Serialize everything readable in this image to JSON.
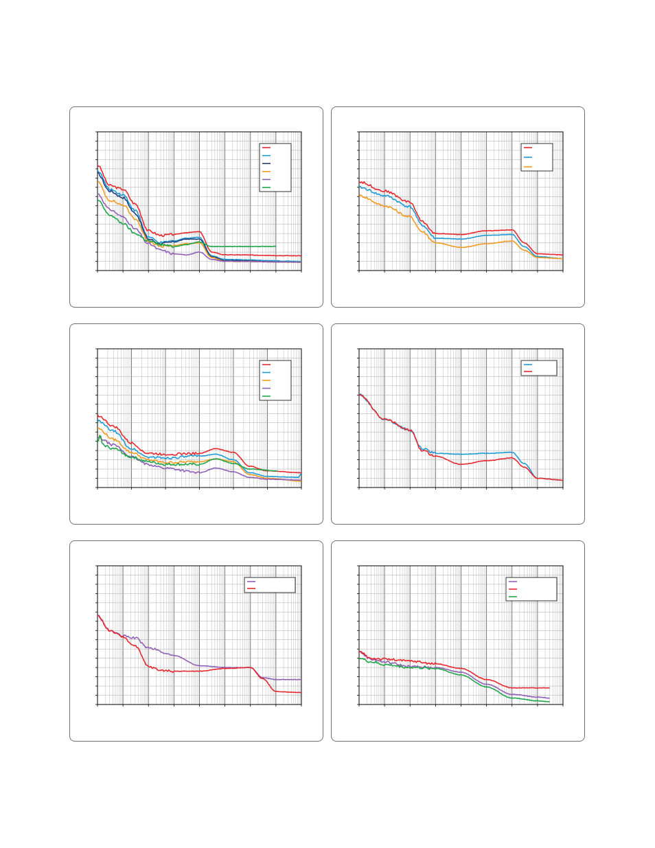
{
  "colors": {
    "red": "#e8262b",
    "cyan": "#1e9ad6",
    "navy": "#1f3f7a",
    "orange": "#f39a1e",
    "purple": "#8f5fb5",
    "green": "#1ea64a",
    "grid": "#a8a8a8",
    "axis": "#000000"
  },
  "chart_data": [
    {
      "type": "line",
      "x_scale": "log",
      "xlim": [
        1,
        100000000.0
      ],
      "ylim": [
        0,
        15
      ],
      "grid": true,
      "legend": "top-right",
      "series": [
        {
          "color": "red",
          "points": [
            [
              1,
              11.4
            ],
            [
              3,
              9.2
            ],
            [
              10,
              8.8
            ],
            [
              30,
              7.2
            ],
            [
              100,
              4.3
            ],
            [
              300,
              3.8
            ],
            [
              1000.0,
              3.9
            ],
            [
              3000.0,
              4.1
            ],
            [
              10000.0,
              4.2
            ],
            [
              30000.0,
              2.0
            ],
            [
              100000.0,
              1.7
            ],
            [
              100000000.0,
              1.6
            ]
          ]
        },
        {
          "color": "cyan",
          "points": [
            [
              1,
              10.8
            ],
            [
              3,
              8.8
            ],
            [
              10,
              8.2
            ],
            [
              30,
              6.5
            ],
            [
              100,
              3.6
            ],
            [
              300,
              3.0
            ],
            [
              1000.0,
              3.2
            ],
            [
              3000.0,
              3.5
            ],
            [
              10000.0,
              3.6
            ],
            [
              30000.0,
              1.6
            ],
            [
              100000.0,
              1.2
            ],
            [
              100000000.0,
              1.0
            ]
          ]
        },
        {
          "color": "navy",
          "points": [
            [
              1,
              10.5
            ],
            [
              3,
              8.6
            ],
            [
              10,
              7.9
            ],
            [
              30,
              6.2
            ],
            [
              100,
              3.4
            ],
            [
              300,
              2.9
            ],
            [
              1000.0,
              3.1
            ],
            [
              3000.0,
              3.4
            ],
            [
              10000.0,
              3.4
            ],
            [
              30000.0,
              1.5
            ],
            [
              100000.0,
              1.1
            ],
            [
              100000000.0,
              0.9
            ]
          ]
        },
        {
          "color": "orange",
          "points": [
            [
              1,
              9.6
            ],
            [
              3,
              7.6
            ],
            [
              10,
              7.1
            ],
            [
              30,
              5.6
            ],
            [
              100,
              3.2
            ],
            [
              300,
              2.6
            ],
            [
              1000.0,
              2.7
            ],
            [
              3000.0,
              2.9
            ],
            [
              10000.0,
              3.0
            ],
            [
              30000.0,
              1.4
            ],
            [
              100000.0,
              1.0
            ],
            [
              100000000.0,
              0.9
            ]
          ]
        },
        {
          "color": "purple",
          "points": [
            [
              1,
              8.3
            ],
            [
              3,
              6.6
            ],
            [
              10,
              5.8
            ],
            [
              30,
              4.5
            ],
            [
              100,
              2.9
            ],
            [
              300,
              2.2
            ],
            [
              1000.0,
              1.8
            ],
            [
              3000.0,
              1.7
            ],
            [
              10000.0,
              2.0
            ],
            [
              30000.0,
              1.2
            ],
            [
              100000.0,
              1.0
            ],
            [
              100000000.0,
              0.9
            ]
          ]
        },
        {
          "color": "green",
          "points": [
            [
              1,
              7.6
            ],
            [
              3,
              6.0
            ],
            [
              10,
              5.1
            ],
            [
              30,
              4.0
            ],
            [
              100,
              3.2
            ],
            [
              300,
              2.8
            ],
            [
              1000.0,
              2.6
            ],
            [
              3000.0,
              2.8
            ],
            [
              10000.0,
              3.1
            ],
            [
              30000.0,
              2.6
            ],
            [
              1000000.0,
              2.6
            ],
            [
              10000000.0,
              2.6
            ]
          ]
        }
      ]
    },
    {
      "type": "line",
      "x_scale": "log",
      "xlim": [
        1,
        100000000.0
      ],
      "ylim": [
        0,
        15
      ],
      "grid": true,
      "legend": "top-right",
      "series": [
        {
          "color": "red",
          "points": [
            [
              1,
              9.6
            ],
            [
              10,
              8.6
            ],
            [
              100,
              7.4
            ],
            [
              300,
              5.3
            ],
            [
              1000.0,
              4.0
            ],
            [
              10000.0,
              3.9
            ],
            [
              100000.0,
              4.3
            ],
            [
              1000000.0,
              4.4
            ],
            [
              3000000.0,
              3.0
            ],
            [
              10000000.0,
              1.8
            ],
            [
              100000000.0,
              1.7
            ]
          ]
        },
        {
          "color": "cyan",
          "points": [
            [
              1,
              9.0
            ],
            [
              10,
              8.1
            ],
            [
              100,
              6.9
            ],
            [
              300,
              4.9
            ],
            [
              1000.0,
              3.5
            ],
            [
              10000.0,
              3.4
            ],
            [
              100000.0,
              3.8
            ],
            [
              1000000.0,
              3.9
            ],
            [
              3000000.0,
              2.6
            ],
            [
              10000000.0,
              1.5
            ],
            [
              100000000.0,
              1.3
            ]
          ]
        },
        {
          "color": "orange",
          "points": [
            [
              1,
              8.1
            ],
            [
              10,
              7.0
            ],
            [
              100,
              5.8
            ],
            [
              300,
              4.2
            ],
            [
              1000.0,
              3.0
            ],
            [
              10000.0,
              2.5
            ],
            [
              100000.0,
              2.9
            ],
            [
              1000000.0,
              3.2
            ],
            [
              3000000.0,
              2.2
            ],
            [
              10000000.0,
              1.4
            ],
            [
              100000000.0,
              1.3
            ]
          ]
        }
      ]
    },
    {
      "type": "line",
      "x_scale": "log",
      "xlim": [
        1,
        1000000.0
      ],
      "ylim": [
        0,
        15
      ],
      "grid": true,
      "legend": "top-right",
      "series": [
        {
          "color": "red",
          "points": [
            [
              1,
              7.8
            ],
            [
              3,
              6.6
            ],
            [
              10,
              4.8
            ],
            [
              30,
              3.7
            ],
            [
              100,
              3.6
            ],
            [
              1000.0,
              3.7
            ],
            [
              3000.0,
              4.2
            ],
            [
              10000.0,
              3.8
            ],
            [
              30000.0,
              2.3
            ],
            [
              100000.0,
              1.8
            ],
            [
              1000000.0,
              1.6
            ]
          ]
        },
        {
          "color": "cyan",
          "points": [
            [
              1,
              7.2
            ],
            [
              3,
              6.1
            ],
            [
              10,
              4.2
            ],
            [
              30,
              3.3
            ],
            [
              100,
              3.2
            ],
            [
              1000.0,
              3.4
            ],
            [
              3000.0,
              3.6
            ],
            [
              10000.0,
              3.0
            ],
            [
              30000.0,
              1.6
            ],
            [
              100000.0,
              1.2
            ],
            [
              800000.0,
              1.1
            ],
            [
              1000000.0,
              1.5
            ]
          ]
        },
        {
          "color": "orange",
          "points": [
            [
              1,
              6.4
            ],
            [
              3,
              5.2
            ],
            [
              10,
              3.8
            ],
            [
              30,
              3.0
            ],
            [
              100,
              2.7
            ],
            [
              1000.0,
              2.8
            ],
            [
              3000.0,
              3.1
            ],
            [
              10000.0,
              2.8
            ],
            [
              30000.0,
              1.4
            ],
            [
              100000.0,
              1.0
            ],
            [
              1000000.0,
              0.7
            ]
          ]
        },
        {
          "color": "purple",
          "points": [
            [
              1,
              5.4
            ],
            [
              3,
              4.6
            ],
            [
              10,
              3.3
            ],
            [
              30,
              2.5
            ],
            [
              100,
              2.1
            ],
            [
              1000.0,
              1.6
            ],
            [
              3000.0,
              2.1
            ],
            [
              10000.0,
              1.7
            ],
            [
              30000.0,
              1.1
            ],
            [
              100000.0,
              0.9
            ],
            [
              1000000.0,
              0.8
            ]
          ]
        },
        {
          "color": "green",
          "points": [
            [
              1,
              4.8
            ],
            [
              1.2,
              5.7
            ],
            [
              1.4,
              4.6
            ],
            [
              3,
              4.2
            ],
            [
              10,
              3.3
            ],
            [
              30,
              2.8
            ],
            [
              100,
              2.5
            ],
            [
              1000.0,
              2.5
            ],
            [
              3000.0,
              3.1
            ],
            [
              10000.0,
              2.6
            ],
            [
              30000.0,
              2.0
            ],
            [
              200000.0,
              1.8
            ]
          ]
        }
      ]
    },
    {
      "type": "line",
      "x_scale": "log",
      "xlim": [
        1,
        100000000.0
      ],
      "ylim": [
        0,
        15
      ],
      "grid": true,
      "legend": "top-right",
      "series": [
        {
          "color": "cyan",
          "points": [
            [
              1,
              10.0
            ],
            [
              10,
              7.4
            ],
            [
              100,
              6.2
            ],
            [
              300,
              4.2
            ],
            [
              1000.0,
              3.7
            ],
            [
              10000.0,
              3.6
            ],
            [
              100000.0,
              3.7
            ],
            [
              1000000.0,
              3.8
            ],
            [
              3000000.0,
              2.6
            ],
            [
              10000000.0,
              1.0
            ],
            [
              100000000.0,
              0.8
            ]
          ]
        },
        {
          "color": "red",
          "points": [
            [
              1,
              10.0
            ],
            [
              10,
              7.4
            ],
            [
              100,
              6.2
            ],
            [
              300,
              4.0
            ],
            [
              1000.0,
              3.4
            ],
            [
              10000.0,
              2.5
            ],
            [
              100000.0,
              2.9
            ],
            [
              1000000.0,
              3.2
            ],
            [
              3000000.0,
              2.2
            ],
            [
              10000000.0,
              1.0
            ],
            [
              100000000.0,
              0.8
            ]
          ]
        }
      ]
    },
    {
      "type": "line",
      "x_scale": "log",
      "xlim": [
        1,
        100000000.0
      ],
      "ylim": [
        0,
        15
      ],
      "grid": true,
      "legend": "top-right",
      "series": [
        {
          "color": "purple",
          "points": [
            [
              1,
              9.6
            ],
            [
              3,
              8.0
            ],
            [
              10,
              7.4
            ],
            [
              30,
              7.2
            ],
            [
              100,
              6.1
            ],
            [
              1000.0,
              5.3
            ],
            [
              10000.0,
              4.2
            ],
            [
              100000.0,
              4.0
            ],
            [
              1000000.0,
              4.0
            ],
            [
              3000000.0,
              2.9
            ],
            [
              10000000.0,
              2.7
            ],
            [
              100000000.0,
              2.7
            ]
          ]
        },
        {
          "color": "red",
          "points": [
            [
              1,
              9.6
            ],
            [
              3,
              8.0
            ],
            [
              10,
              7.3
            ],
            [
              30,
              6.3
            ],
            [
              100,
              4.1
            ],
            [
              300,
              3.7
            ],
            [
              1000.0,
              3.6
            ],
            [
              10000.0,
              3.6
            ],
            [
              100000.0,
              3.9
            ],
            [
              1000000.0,
              4.0
            ],
            [
              3000000.0,
              2.8
            ],
            [
              10000000.0,
              1.4
            ],
            [
              100000000.0,
              1.3
            ]
          ]
        }
      ]
    },
    {
      "type": "line",
      "x_scale": "log",
      "xlim": [
        1,
        100000000.0
      ],
      "ylim": [
        0,
        15
      ],
      "grid": true,
      "legend": "top-right",
      "series": [
        {
          "color": "purple",
          "points": [
            [
              1,
              5.7
            ],
            [
              3,
              4.9
            ],
            [
              10,
              4.6
            ],
            [
              100.0,
              4.1
            ],
            [
              1000.0,
              4.0
            ],
            [
              10000.0,
              3.5
            ],
            [
              100000.0,
              2.2
            ],
            [
              1000000.0,
              1.1
            ],
            [
              10000000.0,
              0.8
            ],
            [
              30000000.0,
              0.7
            ]
          ]
        },
        {
          "color": "red",
          "points": [
            [
              1,
              5.7
            ],
            [
              3,
              5.0
            ],
            [
              10,
              4.9
            ],
            [
              100.0,
              4.7
            ],
            [
              1000.0,
              4.4
            ],
            [
              10000.0,
              3.9
            ],
            [
              100000.0,
              2.7
            ],
            [
              1000000.0,
              1.8
            ],
            [
              10000000.0,
              1.8
            ],
            [
              30000000.0,
              1.8
            ]
          ]
        },
        {
          "color": "green",
          "points": [
            [
              1,
              5.0
            ],
            [
              3,
              4.6
            ],
            [
              10,
              4.3
            ],
            [
              100.0,
              4.0
            ],
            [
              1000.0,
              3.9
            ],
            [
              10000.0,
              3.2
            ],
            [
              100000.0,
              1.9
            ],
            [
              1000000.0,
              0.7
            ],
            [
              10000000.0,
              0.4
            ],
            [
              30000000.0,
              0.3
            ]
          ]
        }
      ]
    }
  ]
}
